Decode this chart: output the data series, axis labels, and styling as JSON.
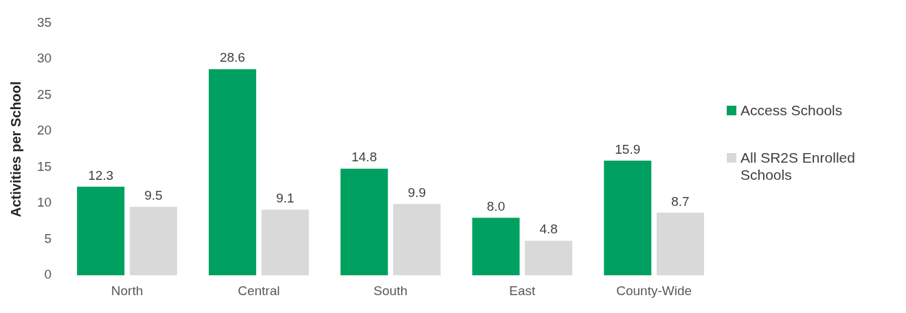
{
  "chart_data": {
    "type": "bar",
    "ylabel": "Activities per School",
    "categories": [
      "North",
      "Central",
      "South",
      "East",
      "County-Wide"
    ],
    "series": [
      {
        "name": "Access Schools",
        "color": "#00a160",
        "values": [
          12.3,
          28.6,
          14.8,
          8.0,
          15.9
        ],
        "value_labels": [
          "12.3",
          "28.6",
          "14.8",
          "8.0",
          "15.9"
        ]
      },
      {
        "name": "All SR2S Enrolled Schools",
        "color": "#d9d9d9",
        "values": [
          9.5,
          9.1,
          9.9,
          4.8,
          8.7
        ],
        "value_labels": [
          "9.5",
          "9.1",
          "9.9",
          "4.8",
          "8.7"
        ]
      }
    ],
    "ylim": [
      0,
      35
    ],
    "yticks": [
      0,
      5,
      10,
      15,
      20,
      25,
      30,
      35
    ],
    "grid": false,
    "legend": "right"
  }
}
